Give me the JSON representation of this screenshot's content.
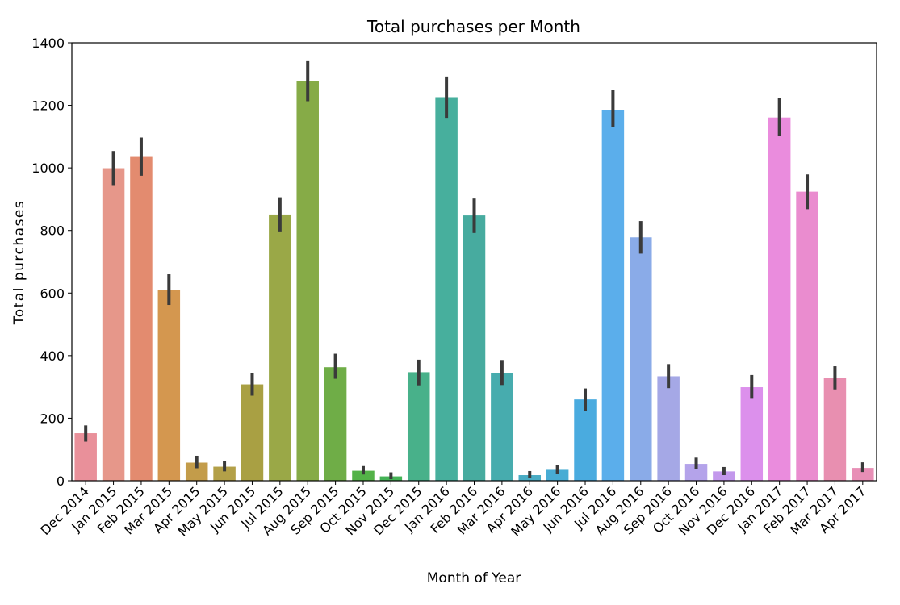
{
  "chart_data": {
    "type": "bar",
    "title": "Total purchases per Month",
    "xlabel": "Month of Year",
    "ylabel": "Total purchases",
    "ylim": [
      0,
      1400
    ],
    "yticks": [
      0,
      200,
      400,
      600,
      800,
      1000,
      1200,
      1400
    ],
    "grid": false,
    "legend": "none",
    "categories": [
      "Dec 2014",
      "Jan 2015",
      "Feb 2015",
      "Mar 2015",
      "Apr 2015",
      "May 2015",
      "Jun 2015",
      "Jul 2015",
      "Aug 2015",
      "Sep 2015",
      "Oct 2015",
      "Nov 2015",
      "Dec 2015",
      "Jan 2016",
      "Feb 2016",
      "Mar 2016",
      "Apr 2016",
      "May 2016",
      "Jun 2016",
      "Jul 2016",
      "Aug 2016",
      "Sep 2016",
      "Oct 2016",
      "Nov 2016",
      "Dec 2016",
      "Jan 2017",
      "Feb 2017",
      "Mar 2017",
      "Apr 2017"
    ],
    "values": [
      152,
      999,
      1035,
      610,
      58,
      45,
      308,
      851,
      1277,
      363,
      32,
      14,
      347,
      1226,
      848,
      344,
      18,
      35,
      260,
      1186,
      778,
      334,
      54,
      30,
      299,
      1161,
      924,
      328,
      41
    ],
    "error_low": [
      125,
      945,
      975,
      562,
      40,
      30,
      272,
      797,
      1213,
      326,
      20,
      5,
      305,
      1160,
      792,
      306,
      8,
      22,
      224,
      1130,
      726,
      296,
      38,
      18,
      262,
      1103,
      868,
      292,
      28
    ],
    "error_high": [
      177,
      1054,
      1097,
      660,
      80,
      63,
      345,
      906,
      1341,
      406,
      47,
      27,
      387,
      1292,
      902,
      386,
      31,
      51,
      295,
      1248,
      830,
      373,
      74,
      44,
      338,
      1222,
      979,
      366,
      59
    ],
    "colors": [
      "#e9909a",
      "#e6978a",
      "#e38b6f",
      "#d4974f",
      "#c39c4a",
      "#b3a048",
      "#a9a043",
      "#9aa847",
      "#86ab47",
      "#6fad47",
      "#53b248",
      "#44b256",
      "#48b18a",
      "#47af9d",
      "#47ab9f",
      "#47acae",
      "#49acc4",
      "#48acd4",
      "#4aabdf",
      "#5baeeb",
      "#8aabe8",
      "#a5a8e6",
      "#b4a3ea",
      "#c398ec",
      "#dc90ec",
      "#ea8cdd",
      "#ea8ccf",
      "#e88fb0",
      "#e88fb6"
    ],
    "errorbar_color": "#3a3a3a"
  }
}
